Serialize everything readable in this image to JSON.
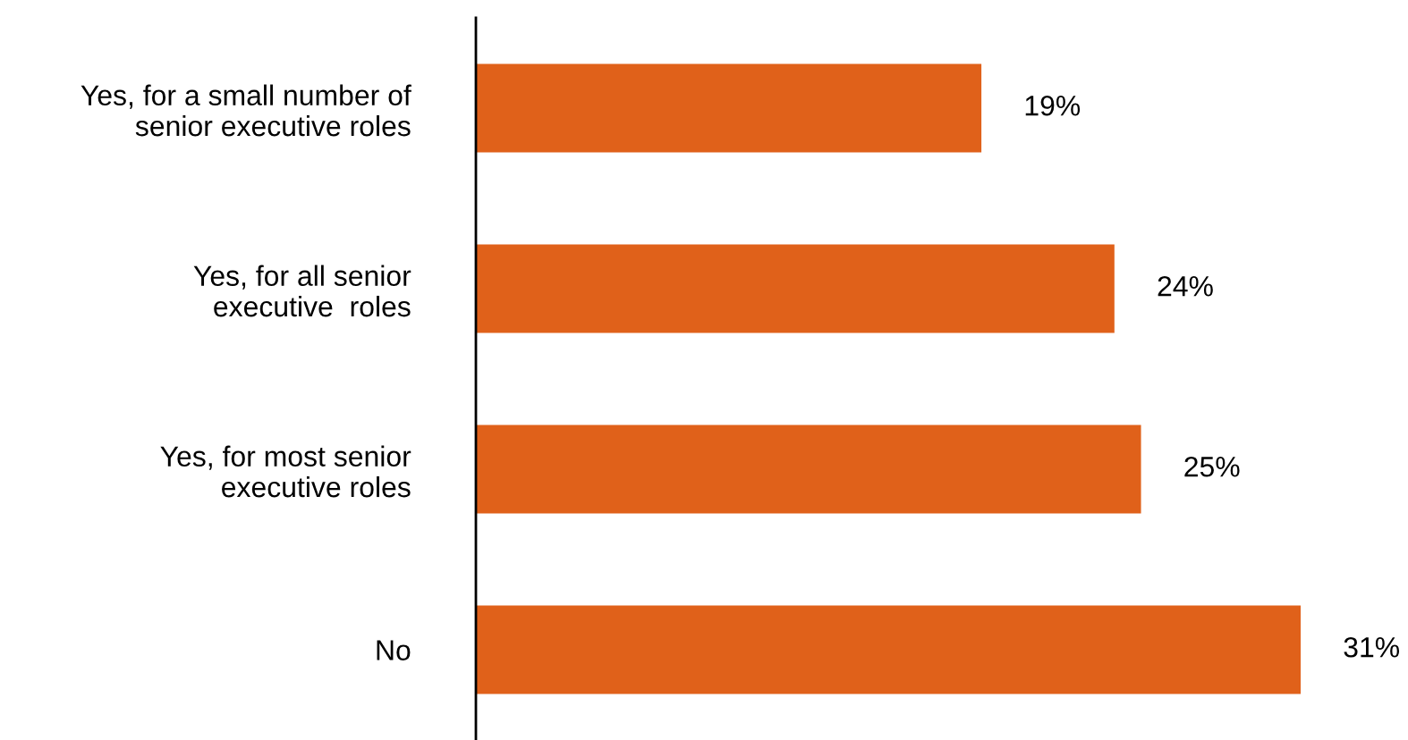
{
  "chart_data": {
    "type": "bar",
    "orientation": "horizontal",
    "categories": [
      "Yes, for a small number of\nsenior executive roles",
      "Yes, for all senior\nexecutive  roles",
      "Yes, for most senior\nexecutive roles",
      "No"
    ],
    "values": [
      19,
      24,
      25,
      31
    ],
    "value_labels": [
      "19%",
      "24%",
      "25%",
      "31%"
    ],
    "color": "#e0611a",
    "tick_labels": "y",
    "grid": false
  }
}
